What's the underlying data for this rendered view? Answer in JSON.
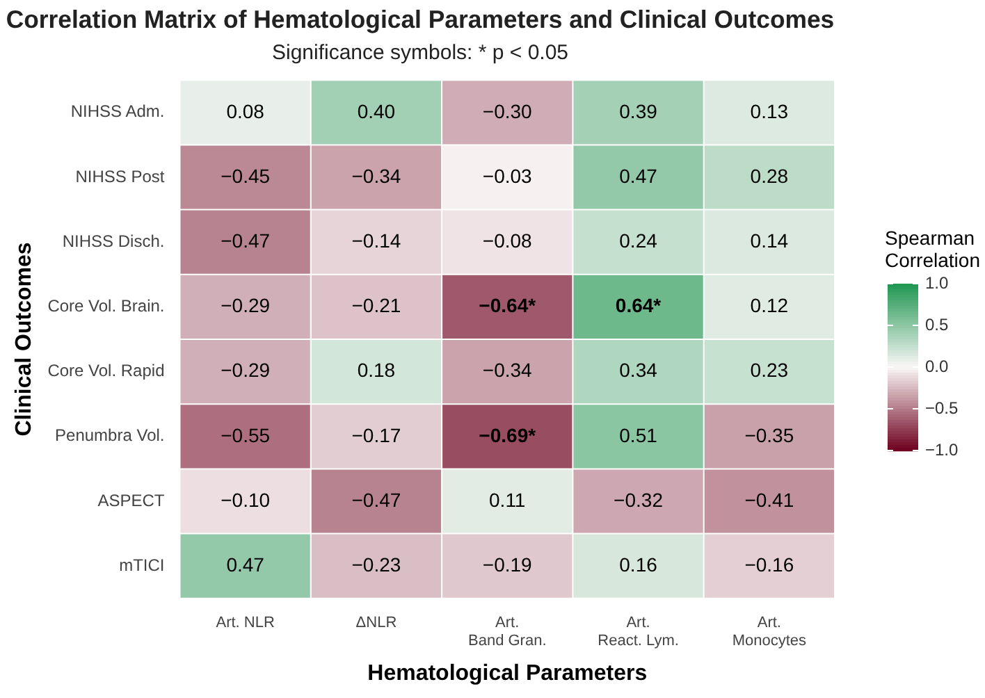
{
  "chart_data": {
    "type": "heatmap",
    "title": "Correlation Matrix of Hematological Parameters and Clinical Outcomes",
    "subtitle": "Significance symbols: * p < 0.05",
    "xlabel": "Hematological Parameters",
    "ylabel": "Clinical Outcomes",
    "legend_title": "Spearman\nCorrelation",
    "categories": [
      "Art. NLR",
      "ΔNLR",
      "Art.\nBand Gran.",
      "Art.\nReact. Lym.",
      "Art.\nMonocytes"
    ],
    "y_categories": [
      "NIHSS Adm.",
      "NIHSS Post",
      "NIHSS Disch.",
      "Core Vol. Brain.",
      "Core Vol. Rapid",
      "Penumbra Vol.",
      "ASPECT",
      "mTICI"
    ],
    "cells": [
      [
        0.08,
        0.4,
        -0.3,
        0.39,
        0.13
      ],
      [
        -0.45,
        -0.34,
        -0.03,
        0.47,
        0.28
      ],
      [
        -0.47,
        -0.14,
        -0.08,
        0.24,
        0.14
      ],
      [
        -0.29,
        -0.21,
        -0.64,
        0.64,
        0.12
      ],
      [
        -0.29,
        0.18,
        -0.34,
        0.34,
        0.23
      ],
      [
        -0.55,
        -0.17,
        -0.69,
        0.51,
        -0.35
      ],
      [
        -0.1,
        -0.47,
        0.11,
        -0.32,
        -0.41
      ],
      [
        0.47,
        -0.23,
        -0.19,
        0.16,
        -0.16
      ]
    ],
    "cell_labels": [
      [
        "0.08",
        "0.40",
        "−0.30",
        "0.39",
        "0.13"
      ],
      [
        "−0.45",
        "−0.34",
        "−0.03",
        "0.47",
        "0.28"
      ],
      [
        "−0.47",
        "−0.14",
        "−0.08",
        "0.24",
        "0.14"
      ],
      [
        "−0.29",
        "−0.21",
        "−0.64*",
        "0.64*",
        "0.12"
      ],
      [
        "−0.29",
        "0.18",
        "−0.34",
        "0.34",
        "0.23"
      ],
      [
        "−0.55",
        "−0.17",
        "−0.69*",
        "0.51",
        "−0.35"
      ],
      [
        "−0.10",
        "−0.47",
        "0.11",
        "−0.32",
        "−0.41"
      ],
      [
        "0.47",
        "−0.23",
        "−0.19",
        "0.16",
        "−0.16"
      ]
    ],
    "clim": [
      -1,
      1
    ],
    "cticks": [
      {
        "value": 1,
        "label": "1.0"
      },
      {
        "value": 0.5,
        "label": "0.5"
      },
      {
        "value": 0,
        "label": "0.0"
      },
      {
        "value": -0.5,
        "label": "−0.5"
      },
      {
        "value": -1,
        "label": "−1.0"
      }
    ]
  }
}
